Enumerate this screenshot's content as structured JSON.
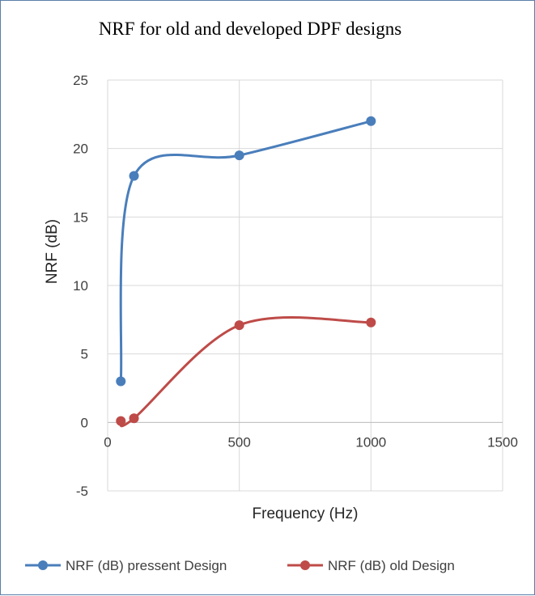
{
  "chart_data": {
    "type": "scatter",
    "title": "NRF for old and developed DPF designs",
    "xlabel": "Frequency (Hz)",
    "ylabel": "NRF (dB)",
    "xlim": [
      0,
      1500
    ],
    "ylim": [
      -5,
      25
    ],
    "x_ticks": [
      "0",
      "500",
      "1000",
      "1500"
    ],
    "y_ticks": [
      "25",
      "20",
      "15",
      "10",
      "5",
      "0",
      "-5"
    ],
    "grid": true,
    "smooth_lines": true,
    "legend_position": "bottom",
    "series": [
      {
        "name": "NRF (dB) pressent Design",
        "color": "#4a7ebb",
        "points": [
          [
            50,
            3
          ],
          [
            100,
            18
          ],
          [
            500,
            19.5
          ],
          [
            1000,
            22
          ]
        ]
      },
      {
        "name": "NRF (dB) old Design",
        "color": "#be4b48",
        "points": [
          [
            50,
            0.1
          ],
          [
            100,
            0.3
          ],
          [
            500,
            7.1
          ],
          [
            1000,
            7.3
          ]
        ]
      }
    ]
  }
}
